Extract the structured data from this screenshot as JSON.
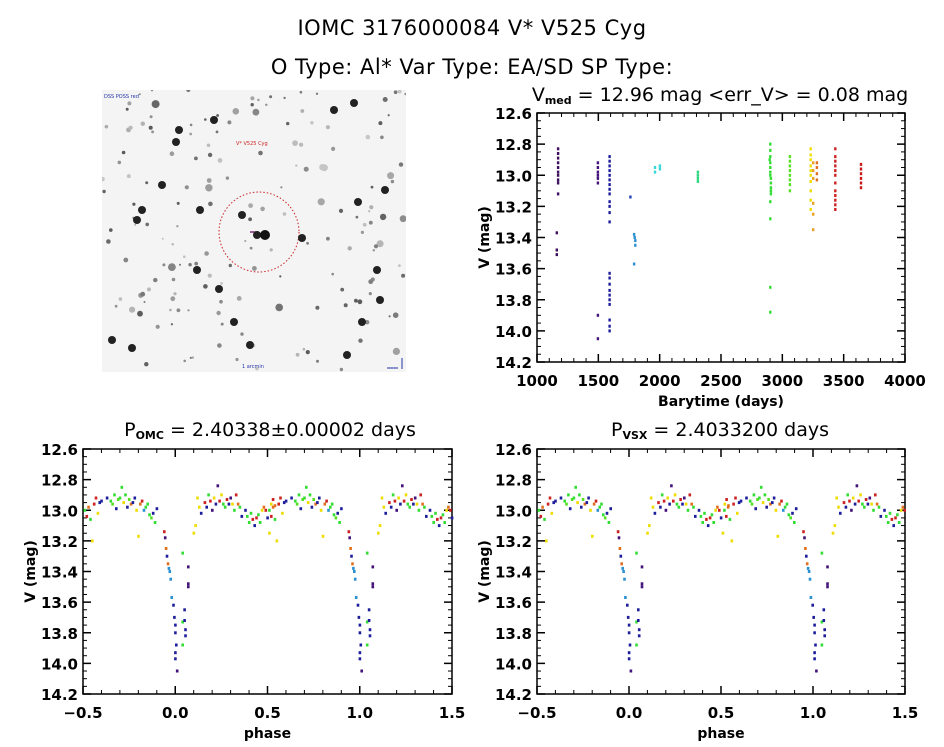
{
  "header": {
    "title_line1": "IOMC 3176000084    V* V525 Cyg",
    "title_line2": "O Type: Al*  Var Type: EA/SD  SP Type:"
  },
  "finder": {
    "label_top_left": "DSS POSS red",
    "label_target": "V* V525 Cyg",
    "label_bottom": "1 arcmin"
  },
  "chart_data": [
    {
      "id": "lightcurve",
      "type": "scatter",
      "title_main": "V",
      "title_sub": "med",
      "title_rest": " = 12.96 mag <err_V> = 0.08 mag",
      "xlabel": "Barytime (days)",
      "ylabel": "V (mag)",
      "xlim": [
        1000,
        4000
      ],
      "ylim": [
        14.2,
        12.6
      ],
      "xticks": [
        1000,
        1500,
        2000,
        2500,
        3000,
        3500,
        4000
      ],
      "yticks": [
        12.6,
        12.8,
        13.0,
        13.2,
        13.4,
        13.6,
        13.8,
        14.0,
        14.2
      ],
      "series": [
        {
          "name": "season-1",
          "color": "#3d0f5c",
          "x": [
            1170,
            1170,
            1170,
            1170,
            1170,
            1170,
            1170,
            1170,
            1170,
            1170,
            1160,
            1160,
            1160
          ],
          "y": [
            12.83,
            12.86,
            12.89,
            12.92,
            12.95,
            12.98,
            13.0,
            13.03,
            13.05,
            13.12,
            13.37,
            13.48,
            13.51
          ]
        },
        {
          "name": "season-2",
          "color": "#43127a",
          "x": [
            1495,
            1495,
            1495,
            1495,
            1495,
            1495,
            1495,
            1495
          ],
          "y": [
            12.92,
            12.95,
            12.98,
            13.0,
            13.02,
            13.05,
            13.9,
            14.05
          ]
        },
        {
          "name": "season-3",
          "color": "#1e1e9c",
          "x": [
            1590,
            1590,
            1590,
            1590,
            1590,
            1590,
            1590,
            1590,
            1590,
            1590,
            1590,
            1590,
            1590,
            1590,
            1590,
            1590,
            1590,
            1590,
            1590,
            1590,
            1590,
            1590,
            1590
          ],
          "y": [
            12.88,
            12.91,
            12.94,
            12.97,
            13.0,
            13.03,
            13.06,
            13.09,
            13.12,
            13.17,
            13.2,
            13.24,
            13.3,
            13.63,
            13.66,
            13.7,
            13.74,
            13.77,
            13.8,
            13.83,
            13.93,
            13.97,
            14.0
          ]
        },
        {
          "name": "season-4",
          "color": "#2244b8",
          "x": [
            1760
          ],
          "y": [
            13.14
          ]
        },
        {
          "name": "season-5",
          "color": "#2c8fd0",
          "x": [
            1790,
            1795,
            1800,
            1800,
            1790
          ],
          "y": [
            13.38,
            13.4,
            13.42,
            13.45,
            13.57
          ]
        },
        {
          "name": "season-6",
          "color": "#38d8d8",
          "x": [
            1960,
            1960,
            2000,
            2000
          ],
          "y": [
            12.95,
            12.98,
            12.94,
            12.96
          ]
        },
        {
          "name": "season-7",
          "color": "#30d880",
          "x": [
            2310,
            2310,
            2310,
            2310
          ],
          "y": [
            12.98,
            13.0,
            13.02,
            13.04
          ]
        },
        {
          "name": "season-8",
          "color": "#33dd33",
          "x": [
            2900,
            2900,
            2900,
            2900,
            2900,
            2900,
            2900,
            2905,
            2905,
            2905,
            2905,
            2905,
            2895,
            2900,
            2900,
            2900,
            2900
          ],
          "y": [
            12.8,
            12.84,
            12.88,
            12.92,
            12.95,
            12.98,
            13.0,
            13.02,
            13.05,
            13.08,
            13.1,
            13.12,
            12.9,
            13.17,
            13.28,
            13.72,
            13.88
          ]
        },
        {
          "name": "season-9",
          "color": "#55e022",
          "x": [
            3060,
            3060,
            3060,
            3060,
            3060,
            3060,
            3060,
            3060
          ],
          "y": [
            12.88,
            12.91,
            12.94,
            12.97,
            13.0,
            13.03,
            13.06,
            13.1
          ]
        },
        {
          "name": "season-10",
          "color": "#eedd00",
          "x": [
            3230,
            3230,
            3230,
            3230,
            3230,
            3230,
            3230,
            3230,
            3230,
            3230
          ],
          "y": [
            12.83,
            12.87,
            12.9,
            12.94,
            12.97,
            13.0,
            13.04,
            13.1,
            13.16,
            13.22
          ]
        },
        {
          "name": "season-11",
          "color": "#e8a020",
          "x": [
            3250,
            3250,
            3250,
            3250,
            3250,
            3250
          ],
          "y": [
            12.92,
            12.97,
            13.02,
            13.18,
            13.25,
            13.35
          ]
        },
        {
          "name": "season-12",
          "color": "#e07020",
          "x": [
            3280,
            3280,
            3280,
            3280
          ],
          "y": [
            12.92,
            12.95,
            12.99,
            13.03
          ]
        },
        {
          "name": "season-13",
          "color": "#cc2222",
          "x": [
            3430,
            3430,
            3430,
            3430,
            3430,
            3430,
            3430,
            3430,
            3430,
            3430,
            3430,
            3430
          ],
          "y": [
            12.83,
            12.88,
            12.91,
            12.94,
            12.97,
            13.0,
            13.05,
            13.1,
            13.13,
            13.16,
            13.19,
            13.22
          ]
        },
        {
          "name": "season-14",
          "color": "#c81818",
          "x": [
            3640,
            3640,
            3640,
            3640,
            3640,
            3640
          ],
          "y": [
            12.93,
            12.96,
            12.99,
            13.02,
            13.05,
            13.08
          ]
        }
      ]
    },
    {
      "id": "phase-omc",
      "type": "scatter",
      "title_main": "P",
      "title_sub": "OMC",
      "title_rest": " = 2.40338±0.00002 days",
      "xlabel": "phase",
      "ylabel": "V (mag)",
      "xlim": [
        -0.5,
        1.5
      ],
      "ylim": [
        14.2,
        12.6
      ],
      "xticks": [
        -0.5,
        0.0,
        0.5,
        1.0,
        1.5
      ],
      "xtick_labels": [
        "−0.5",
        "0.0",
        "0.5",
        "1.0",
        "1.5"
      ],
      "yticks": [
        12.6,
        12.8,
        13.0,
        13.2,
        13.4,
        13.6,
        13.8,
        14.0,
        14.2
      ],
      "repeat_period": 1.0
    },
    {
      "id": "phase-vsx",
      "type": "scatter",
      "title_main": "P",
      "title_sub": "VSX",
      "title_rest": " = 2.4033200 days",
      "xlabel": "phase",
      "ylabel": "V (mag)",
      "xlim": [
        -0.5,
        1.5
      ],
      "ylim": [
        14.2,
        12.6
      ],
      "xticks": [
        -0.5,
        0.0,
        0.5,
        1.0,
        1.5
      ],
      "xtick_labels": [
        "−0.5",
        "0.0",
        "0.5",
        "1.0",
        "1.5"
      ],
      "yticks": [
        12.6,
        12.8,
        13.0,
        13.2,
        13.4,
        13.6,
        13.8,
        14.0,
        14.2
      ],
      "repeat_period": 1.0
    }
  ],
  "phase_points": {
    "colors": [
      "#1e1e9c",
      "#33dd33",
      "#cc2222",
      "#eedd00",
      "#e07020",
      "#43127a",
      "#2c8fd0",
      "#55e022"
    ],
    "points": [
      [
        -0.49,
        13.0,
        1
      ],
      [
        -0.48,
        13.04,
        2
      ],
      [
        -0.47,
        12.98,
        4
      ],
      [
        -0.46,
        13.06,
        1
      ],
      [
        -0.45,
        13.2,
        3
      ],
      [
        -0.44,
        12.96,
        2
      ],
      [
        -0.43,
        12.92,
        2
      ],
      [
        -0.42,
        13.02,
        3
      ],
      [
        -0.41,
        12.95,
        0
      ],
      [
        -0.4,
        12.94,
        0
      ],
      [
        -0.37,
        12.92,
        0
      ],
      [
        -0.35,
        12.94,
        1
      ],
      [
        -0.34,
        12.96,
        7
      ],
      [
        -0.33,
        12.9,
        1
      ],
      [
        -0.32,
        12.99,
        0
      ],
      [
        -0.31,
        12.93,
        7
      ],
      [
        -0.3,
        12.92,
        1
      ],
      [
        -0.29,
        12.85,
        1
      ],
      [
        -0.28,
        12.95,
        3
      ],
      [
        -0.27,
        12.9,
        1
      ],
      [
        -0.26,
        12.98,
        0
      ],
      [
        -0.25,
        12.93,
        7
      ],
      [
        -0.24,
        12.96,
        4
      ],
      [
        -0.23,
        12.95,
        0
      ],
      [
        -0.22,
        12.92,
        0
      ],
      [
        -0.21,
        13.0,
        3
      ],
      [
        -0.2,
        13.17,
        3
      ],
      [
        -0.19,
        12.96,
        4
      ],
      [
        -0.18,
        12.94,
        2
      ],
      [
        -0.17,
        13.0,
        6
      ],
      [
        -0.16,
        12.98,
        1
      ],
      [
        -0.15,
        12.96,
        1
      ],
      [
        -0.14,
        13.03,
        1
      ],
      [
        -0.13,
        13.05,
        7
      ],
      [
        -0.12,
        13.02,
        0
      ],
      [
        -0.11,
        13.08,
        1
      ],
      [
        -0.1,
        12.99,
        0
      ],
      [
        -0.06,
        13.14,
        2
      ],
      [
        -0.055,
        13.18,
        5
      ],
      [
        -0.05,
        13.25,
        4
      ],
      [
        -0.045,
        13.3,
        0
      ],
      [
        -0.04,
        13.35,
        4
      ],
      [
        -0.035,
        13.38,
        6
      ],
      [
        -0.03,
        13.4,
        6
      ],
      [
        -0.025,
        13.45,
        6
      ],
      [
        -0.02,
        13.57,
        6
      ],
      [
        -0.01,
        13.62,
        0
      ],
      [
        -0.005,
        13.7,
        0
      ],
      [
        0.0,
        13.75,
        0
      ],
      [
        0.0,
        13.8,
        0
      ],
      [
        0.005,
        13.88,
        0
      ],
      [
        0.0,
        13.93,
        0
      ],
      [
        0.0,
        13.97,
        0
      ],
      [
        0.01,
        14.05,
        5
      ],
      [
        0.04,
        13.28,
        1
      ],
      [
        0.04,
        13.73,
        1
      ],
      [
        0.04,
        13.88,
        1
      ],
      [
        0.05,
        13.65,
        0
      ],
      [
        0.05,
        13.72,
        0
      ],
      [
        0.055,
        13.78,
        0
      ],
      [
        0.055,
        13.82,
        0
      ],
      [
        0.07,
        13.37,
        5
      ],
      [
        0.07,
        13.48,
        5
      ],
      [
        0.07,
        13.5,
        5
      ],
      [
        0.1,
        13.15,
        3
      ],
      [
        0.11,
        13.1,
        3
      ],
      [
        0.12,
        12.92,
        3
      ],
      [
        0.13,
        12.98,
        3
      ],
      [
        0.14,
        13.02,
        0
      ],
      [
        0.16,
        12.95,
        2
      ],
      [
        0.17,
        12.98,
        0
      ],
      [
        0.18,
        12.9,
        1
      ],
      [
        0.19,
        12.94,
        2
      ],
      [
        0.2,
        13.0,
        5
      ],
      [
        0.21,
        12.92,
        3
      ],
      [
        0.22,
        12.96,
        0
      ],
      [
        0.23,
        12.84,
        5
      ],
      [
        0.24,
        12.94,
        2
      ],
      [
        0.25,
        12.9,
        3
      ],
      [
        0.26,
        12.96,
        1
      ],
      [
        0.27,
        12.98,
        1
      ],
      [
        0.28,
        12.93,
        2
      ],
      [
        0.29,
        12.96,
        0
      ],
      [
        0.3,
        12.92,
        5
      ],
      [
        0.31,
        12.96,
        3
      ],
      [
        0.32,
        13.0,
        1
      ],
      [
        0.33,
        12.9,
        2
      ],
      [
        0.34,
        12.96,
        4
      ],
      [
        0.35,
        12.98,
        1
      ],
      [
        0.36,
        13.04,
        0
      ],
      [
        0.38,
        13.0,
        0
      ],
      [
        0.39,
        13.04,
        1
      ],
      [
        0.4,
        13.08,
        1
      ],
      [
        0.41,
        13.02,
        1
      ],
      [
        0.42,
        13.06,
        2
      ],
      [
        0.43,
        13.1,
        0
      ],
      [
        0.44,
        13.05,
        2
      ],
      [
        0.45,
        13.03,
        1
      ],
      [
        0.46,
        13.08,
        1
      ],
      [
        0.47,
        13.0,
        3
      ],
      [
        0.48,
        12.98,
        4
      ],
      [
        0.49,
        13.0,
        2
      ],
      [
        0.5,
        13.05,
        0
      ],
      [
        0.51,
        13.15,
        3
      ],
      [
        0.52,
        12.96,
        3
      ],
      [
        0.53,
        12.93,
        2
      ],
      [
        0.54,
        12.97,
        4
      ]
    ]
  }
}
